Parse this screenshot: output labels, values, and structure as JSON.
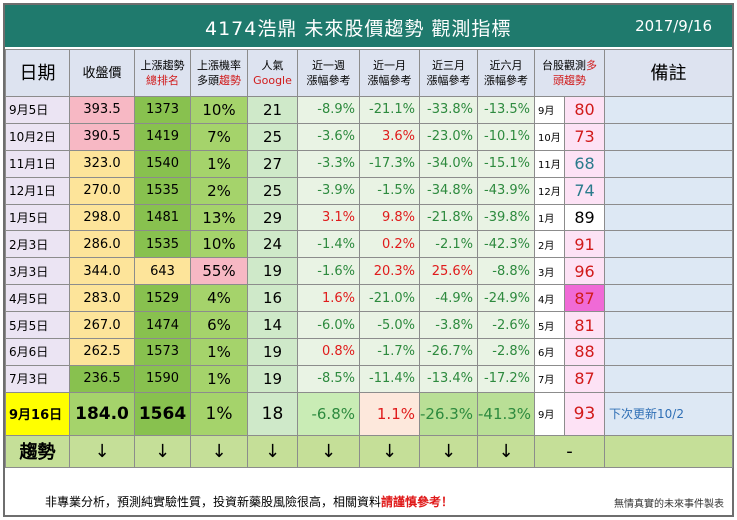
{
  "title": "4174浩鼎  未來股價趨勢 觀測指標",
  "date": "2017/9/16",
  "headers": {
    "date": "日期",
    "close": "收盤價",
    "rank_line1": "上漲趨勢",
    "rank_line2": "總排名",
    "prob_line1": "上漲機率",
    "prob_line2a": "多頭",
    "prob_line2b": "趨勢",
    "pop_line1": "人氣",
    "pop_line2": "Google",
    "w1_line1": "近一週",
    "w1_line2": "漲幅參考",
    "m1_line1": "近一月",
    "m1_line2": "漲幅參考",
    "m3_line1": "近三月",
    "m3_line2": "漲幅參考",
    "m6_line1": "近六月",
    "m6_line2": "漲幅參考",
    "tw_line1a": "台股觀測",
    "tw_line1b": "多",
    "tw_line2": "頭趨勢",
    "note": "備註"
  },
  "rows": [
    {
      "date": "9月5日",
      "close": "393.5",
      "rank": "1373",
      "prob": "10%",
      "pop": "21",
      "w1": "-8.9%",
      "m1": "-21.1%",
      "m3": "-33.8%",
      "m6": "-13.5%",
      "month": "9月",
      "pct": "80"
    },
    {
      "date": "10月2日",
      "close": "390.5",
      "rank": "1419",
      "prob": "7%",
      "pop": "25",
      "w1": "-3.6%",
      "m1": "3.6%",
      "m3": "-23.0%",
      "m6": "-10.1%",
      "month": "10月",
      "pct": "73"
    },
    {
      "date": "11月1日",
      "close": "323.0",
      "rank": "1540",
      "prob": "1%",
      "pop": "27",
      "w1": "-3.3%",
      "m1": "-17.3%",
      "m3": "-34.0%",
      "m6": "-15.1%",
      "month": "11月",
      "pct": "68"
    },
    {
      "date": "12月1日",
      "close": "270.0",
      "rank": "1535",
      "prob": "2%",
      "pop": "25",
      "w1": "-3.9%",
      "m1": "-1.5%",
      "m3": "-34.8%",
      "m6": "-43.9%",
      "month": "12月",
      "pct": "74"
    },
    {
      "date": "1月5日",
      "close": "298.0",
      "rank": "1481",
      "prob": "13%",
      "pop": "29",
      "w1": "3.1%",
      "m1": "9.8%",
      "m3": "-21.8%",
      "m6": "-39.8%",
      "month": "1月",
      "pct": "89"
    },
    {
      "date": "2月3日",
      "close": "286.0",
      "rank": "1535",
      "prob": "10%",
      "pop": "24",
      "w1": "-1.4%",
      "m1": "0.2%",
      "m3": "-2.1%",
      "m6": "-42.3%",
      "month": "2月",
      "pct": "91"
    },
    {
      "date": "3月3日",
      "close": "344.0",
      "rank": "643",
      "prob": "55%",
      "pop": "19",
      "w1": "-1.6%",
      "m1": "20.3%",
      "m3": "25.6%",
      "m6": "-8.8%",
      "month": "3月",
      "pct": "96"
    },
    {
      "date": "4月5日",
      "close": "283.0",
      "rank": "1529",
      "prob": "4%",
      "pop": "16",
      "w1": "1.6%",
      "m1": "-21.0%",
      "m3": "-4.9%",
      "m6": "-24.9%",
      "month": "4月",
      "pct": "87"
    },
    {
      "date": "5月5日",
      "close": "267.0",
      "rank": "1474",
      "prob": "6%",
      "pop": "14",
      "w1": "-6.0%",
      "m1": "-5.0%",
      "m3": "-3.8%",
      "m6": "-2.6%",
      "month": "5月",
      "pct": "81"
    },
    {
      "date": "6月6日",
      "close": "262.5",
      "rank": "1573",
      "prob": "1%",
      "pop": "19",
      "w1": "0.8%",
      "m1": "-1.7%",
      "m3": "-26.7%",
      "m6": "-2.8%",
      "month": "6月",
      "pct": "88"
    },
    {
      "date": "7月3日",
      "close": "236.5",
      "rank": "1590",
      "prob": "1%",
      "pop": "19",
      "w1": "-8.5%",
      "m1": "-11.4%",
      "m3": "-13.4%",
      "m6": "-17.2%",
      "month": "7月",
      "pct": "87"
    }
  ],
  "current": {
    "date": "9月16日",
    "close": "184.0",
    "rank": "1564",
    "prob": "1%",
    "pop": "18",
    "w1": "-6.8%",
    "m1": "1.1%",
    "m3": "-26.3%",
    "m6": "-41.3%",
    "month": "9月",
    "pct": "93",
    "note": "下次更新10/2"
  },
  "trend": {
    "label": "趨勢",
    "arrow": "↓",
    "dash": "-"
  },
  "footer": {
    "disclaimer_a": "非專業分析，預測純實驗性質，投資新藥股風險很高，相關資料",
    "disclaimer_b": "請謹慎參考！",
    "credit": "無情真實的未來事件製表"
  },
  "colors": {
    "title_bg": "#1f7a6d",
    "close_styles": [
      "#f7b8c4",
      "#f7b8c4",
      "#fde49a",
      "#fde49a",
      "#fde49a",
      "#fde49a",
      "#fde49a",
      "#fde49a",
      "#fde49a",
      "#fde49a",
      "#88c14f"
    ],
    "rank_styles": [
      "#88c14f",
      "#88c14f",
      "#88c14f",
      "#88c14f",
      "#88c14f",
      "#88c14f",
      "#fde49a",
      "#88c14f",
      "#88c14f",
      "#88c14f",
      "#88c14f"
    ],
    "prob_styles": [
      "#a5d36b",
      "#a5d36b",
      "#a5d36b",
      "#a5d36b",
      "#a5d36b",
      "#a5d36b",
      "#f7b8c4",
      "#a5d36b",
      "#a5d36b",
      "#a5d36b",
      "#a5d36b"
    ],
    "pct_bg": [
      "#fde2f5",
      "#fde2f5",
      "#fde2f5",
      "#fde2f5",
      "#ffffff",
      "#fde2f5",
      "#fde2f5",
      "#f06ad6",
      "#fde2f5",
      "#fde2f5",
      "#fde2f5"
    ],
    "pct_text": [
      "#d11a1a",
      "#d11a1a",
      "#2a7b8c",
      "#2a7b8c",
      "#000000",
      "#d11a1a",
      "#d11a1a",
      "#d11a1a",
      "#d11a1a",
      "#d11a1a",
      "#d11a1a"
    ]
  }
}
